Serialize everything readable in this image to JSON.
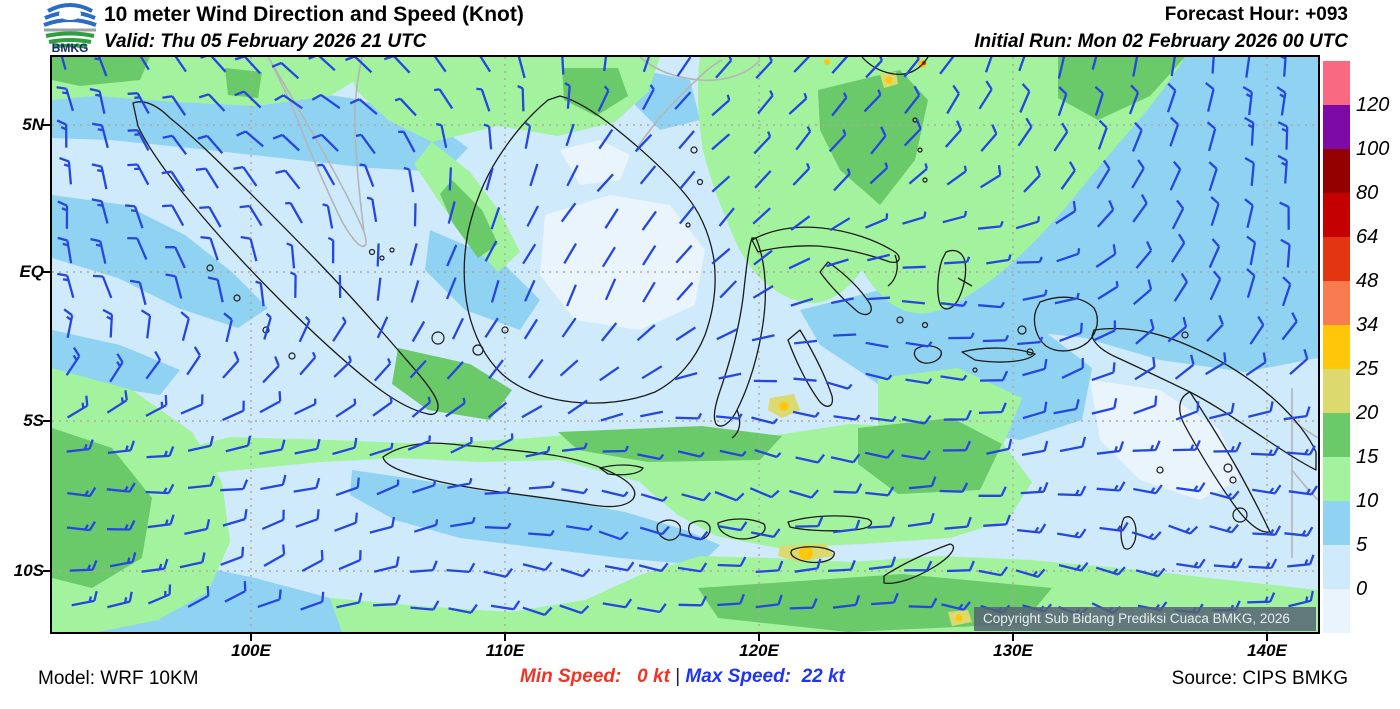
{
  "header": {
    "title": "10 meter Wind Direction and Speed (Knot)",
    "valid": "Valid: Thu 05 February 2026 21 UTC",
    "forecast_hour": "Forecast Hour: +093",
    "initial_run": "Initial Run: Mon 02 February 2026 00 UTC",
    "logo_text": "BMKG"
  },
  "map": {
    "copyright": "Copyright Sub Bidang Prediksi Cuaca BMKG, 2026",
    "lon_labels": [
      "100E",
      "110E",
      "120E",
      "130E",
      "140E"
    ],
    "lat_labels": [
      "5N",
      "EQ",
      "5S",
      "10S"
    ]
  },
  "legend": {
    "labels": [
      "120",
      "100",
      "80",
      "64",
      "48",
      "34",
      "25",
      "20",
      "15",
      "10",
      "5",
      "0"
    ],
    "colors_top_to_bottom": [
      "#f9697f",
      "#7d0aa6",
      "#930000",
      "#c40000",
      "#e23510",
      "#f97c50",
      "#ffc60a",
      "#dcda6e",
      "#6aca6a",
      "#a2f29e",
      "#8fd2f2",
      "#cfeafa",
      "#e9f4fd"
    ]
  },
  "footer": {
    "model": "Model: WRF 10KM",
    "min_speed": "Min Speed:   0 kt",
    "separator": " | ",
    "max_speed": "Max Speed:  22 kt",
    "source": "Source: CIPS BMKG"
  },
  "colors": {
    "barb": "#2647df",
    "min_speed_text": "#ee3524",
    "max_speed_text": "#1f35f0",
    "coast_domestic": "#1b1b1b",
    "coast_foreign": "#b5b5b5",
    "grid_dots": "#b3a69e"
  },
  "chart_data": {
    "type": "map",
    "title": "10 meter Wind Direction and Speed (Knot)",
    "units": "knot",
    "model": "WRF 10KM",
    "forecast_hour": "+093",
    "valid_time": "Thu 05 February 2026 21 UTC",
    "initial_run": "Mon 02 February 2026 00 UTC",
    "min_speed_kt": 0,
    "max_speed_kt": 22,
    "lon_ticks": [
      "100E",
      "110E",
      "120E",
      "130E",
      "140E"
    ],
    "lat_ticks": [
      "5N",
      "EQ",
      "5S",
      "10S"
    ],
    "speed_scale_kt": [
      0,
      5,
      10,
      15,
      20,
      25,
      34,
      48,
      64,
      80,
      100,
      120
    ],
    "legend_position": "right"
  }
}
